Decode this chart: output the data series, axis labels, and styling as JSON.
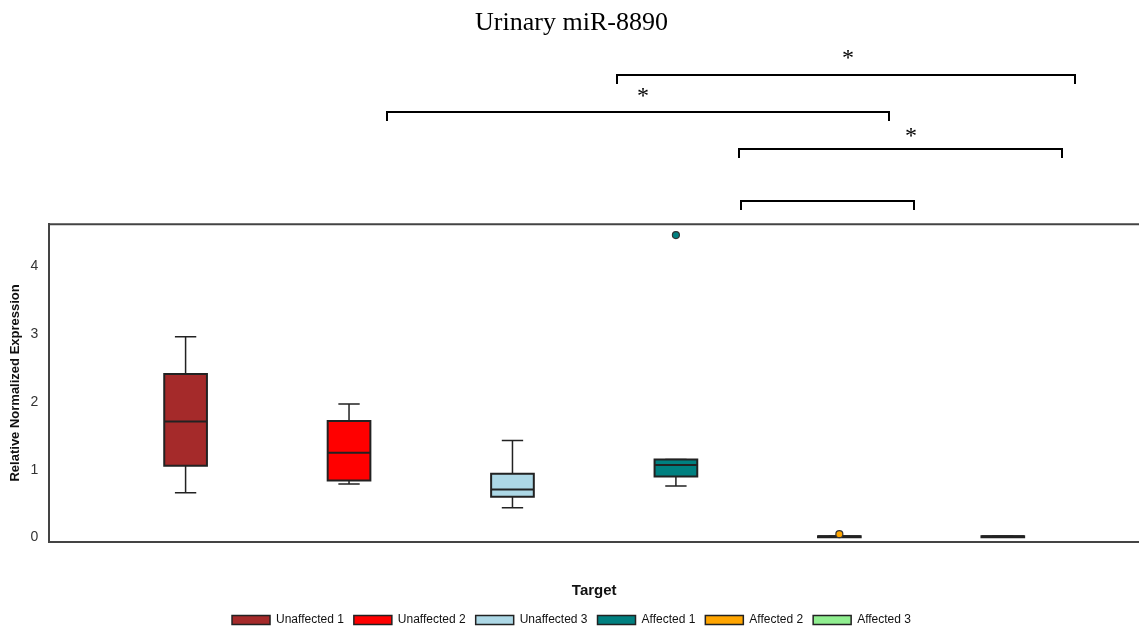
{
  "chart_data": {
    "type": "box",
    "title": "Urinary miR-8890",
    "xlabel": "Target",
    "ylabel": "Relative Normalized Expression",
    "categories": [
      null
    ],
    "ylim": [
      -0.06,
      4.62
    ],
    "yticks": [
      0,
      1,
      2,
      3,
      4
    ],
    "grid": false,
    "legend": "bottom",
    "series": [
      {
        "name": "Unaffected 1",
        "color": "#a52a2a",
        "boxes": [
          {
            "low": 0.66,
            "q1": 1.06,
            "median": 1.71,
            "q3": 2.41,
            "high": 2.96
          }
        ]
      },
      {
        "name": "Unaffected 2",
        "color": "#ff0000",
        "boxes": [
          {
            "low": 0.79,
            "q1": 0.84,
            "median": 1.25,
            "q3": 1.72,
            "high": 1.97
          }
        ]
      },
      {
        "name": "Unaffected 3",
        "color": "#add8e6",
        "boxes": [
          {
            "low": 0.44,
            "q1": 0.6,
            "median": 0.71,
            "q3": 0.94,
            "high": 1.43
          }
        ]
      },
      {
        "name": "Affected 1",
        "color": "#008080",
        "boxes": [
          {
            "low": 0.76,
            "q1": 0.9,
            "median": 1.07,
            "q3": 1.15,
            "high": 1.15,
            "outliers": [
              4.46
            ]
          }
        ]
      },
      {
        "name": "Affected 2",
        "color": "#ffa500",
        "boxes": [
          {
            "low": 0.02,
            "q1": 0.02,
            "median": 0.02,
            "q3": 0.02,
            "high": 0.02,
            "outliers": [
              0.05
            ]
          }
        ]
      },
      {
        "name": "Affected 3",
        "color": "#90ee90",
        "boxes": [
          {
            "low": 0.02,
            "q1": 0.02,
            "median": 0.02,
            "q3": 0.02,
            "high": 0.02
          }
        ]
      }
    ],
    "annotations": [
      "*",
      "*",
      "*"
    ]
  }
}
